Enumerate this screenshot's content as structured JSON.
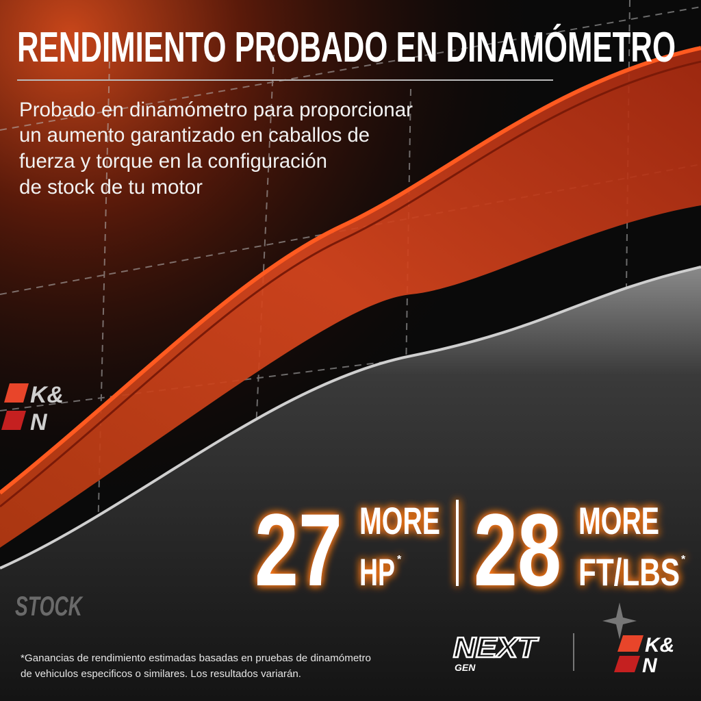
{
  "header": {
    "title": "RENDIMIENTO PROBADO EN DINAMÓMETRO",
    "description": [
      "Probado en dinamómetro para proporcionar",
      "un aumento garantizado en caballos de",
      "fuerza y torque en la configuración",
      "de stock de tu motor"
    ]
  },
  "chart_labels": {
    "brand": [
      "K&",
      "N"
    ],
    "stock": "STOCK"
  },
  "stats": [
    {
      "value": 27,
      "label": [
        "MORE",
        "HP"
      ],
      "note": "*"
    },
    {
      "value": 28,
      "label": [
        "MORE",
        "FT/LBS"
      ],
      "note": "*"
    }
  ],
  "footnote": [
    "*Ganancias de rendimiento estimadas basadas en pruebas de dinamómetro",
    "de vehiculos especificos o similares. Los resultados variarán."
  ],
  "logos": {
    "nextgen": [
      "NEXT",
      "GEN"
    ],
    "brand": [
      "K&",
      "N"
    ]
  }
}
